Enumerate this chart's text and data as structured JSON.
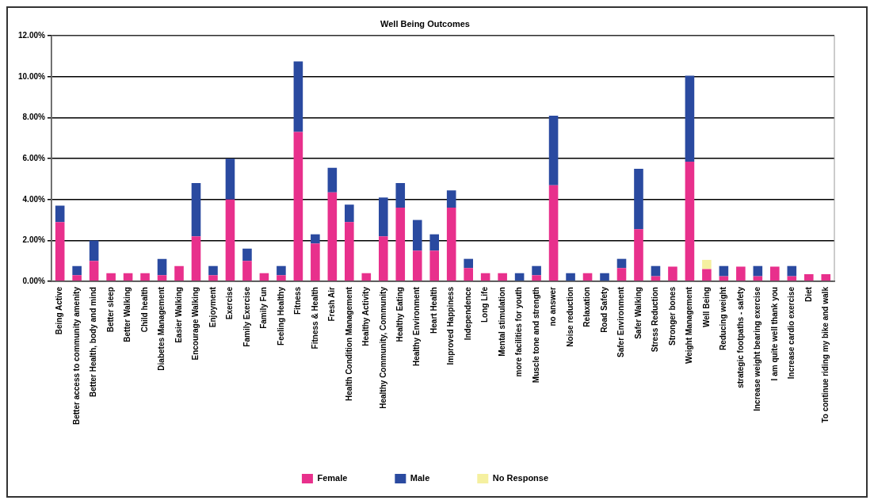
{
  "chart_data": {
    "type": "bar",
    "title": "Well Being Outcomes",
    "stacked": true,
    "grid": "y",
    "legend": "bottom",
    "categories": [
      "Being Active",
      "Better access to community amenity",
      "Better Health, body and mind",
      "Better sleep",
      "Better Walking",
      "Child health",
      "Diabetes Management",
      "Easier Walking",
      "Encourage Walking",
      "Enjoyment",
      "Exercise",
      "Family Exercise",
      "Family Fun",
      "Feeling Healthy",
      "Fitness",
      "Fitness & Health",
      "Fresh Air",
      "Health Condition Management",
      "Healthy Activity",
      "Healthy Community, Community",
      "Healthy Eating",
      "Healthy Environment",
      "Heart Health",
      "Improved Happiness",
      "Independence",
      "Long Life",
      "Mental stimulation",
      "more facilities for youth",
      "Muscle tone and strength",
      "no answer",
      "Noise reduction",
      "Relaxation",
      "Road Safety",
      "Safer Environment",
      "Safer Walking",
      "Stress Reduction",
      "Stronger bones",
      "Weight Management",
      "Well Being",
      "Reducing weight",
      "strategic footpaths - safety",
      "Increase weight bearing exercise",
      "I am quite well thank you",
      "Increase cardio exercise",
      "Diet",
      "To continue riding my bike and walk"
    ],
    "ylim": [
      0,
      12
    ],
    "yticks": [
      {
        "value": 0,
        "label": "0.00%"
      },
      {
        "value": 2,
        "label": "2.00%"
      },
      {
        "value": 4,
        "label": "4.00%"
      },
      {
        "value": 6,
        "label": "6.00%"
      },
      {
        "value": 8,
        "label": "8.00%"
      },
      {
        "value": 10,
        "label": "10.00%"
      },
      {
        "value": 12,
        "label": "12.00%"
      }
    ],
    "series": [
      {
        "name": "Female",
        "color": "#e8308c",
        "values": [
          2.9,
          0.3,
          1.0,
          0.4,
          0.4,
          0.4,
          0.3,
          0.75,
          2.2,
          0.3,
          4.0,
          1.0,
          0.4,
          0.3,
          7.3,
          1.85,
          4.35,
          2.9,
          0.4,
          2.2,
          3.6,
          1.5,
          1.5,
          3.6,
          0.65,
          0.4,
          0.4,
          null,
          0.3,
          4.7,
          null,
          0.4,
          null,
          0.65,
          2.55,
          0.25,
          0.72,
          5.85,
          0.6,
          0.25,
          0.72,
          0.25,
          0.72,
          0.25,
          0.35,
          0.35
        ]
      },
      {
        "name": "Male",
        "color": "#2a4aa0",
        "values": [
          0.8,
          0.45,
          1.0,
          null,
          null,
          null,
          0.8,
          null,
          2.6,
          0.45,
          2.0,
          0.6,
          null,
          0.45,
          3.45,
          0.45,
          1.2,
          0.85,
          null,
          1.9,
          1.2,
          1.5,
          0.8,
          0.85,
          0.45,
          null,
          null,
          0.4,
          0.45,
          3.4,
          0.4,
          null,
          0.4,
          0.45,
          2.95,
          0.5,
          null,
          4.2,
          null,
          0.5,
          null,
          0.5,
          null,
          0.5,
          null,
          null
        ]
      },
      {
        "name": "No Response",
        "color": "#f5f0a0",
        "values": [
          null,
          null,
          null,
          null,
          null,
          null,
          null,
          null,
          null,
          null,
          null,
          null,
          null,
          null,
          null,
          null,
          null,
          null,
          null,
          null,
          null,
          null,
          null,
          null,
          null,
          null,
          null,
          null,
          null,
          null,
          null,
          null,
          null,
          null,
          null,
          null,
          null,
          null,
          0.45,
          null,
          null,
          null,
          null,
          null,
          null,
          null
        ]
      }
    ]
  }
}
